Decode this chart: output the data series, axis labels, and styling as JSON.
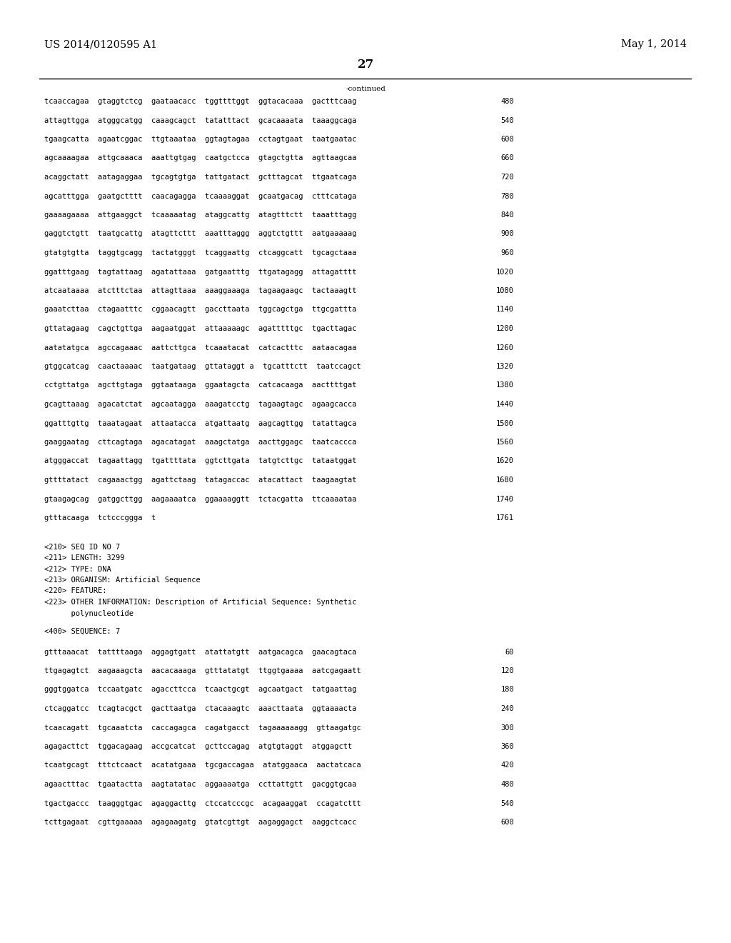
{
  "header_left": "US 2014/0120595 A1",
  "header_right": "May 1, 2014",
  "page_number": "27",
  "continued_label": "-continued",
  "background_color": "#ffffff",
  "text_color": "#000000",
  "font_size": 7.5,
  "header_font_size": 10.5,
  "page_num_font_size": 12,
  "sequence_lines_1": [
    [
      "tcaaccagaa  gtaggtctcg  gaataacacc  tggttttggt  ggtacacaaa  gactttcaag",
      "480"
    ],
    [
      "attagttgga  atgggcatgg  caaagcagct  tatatttact  gcacaaaata  taaaggcaga",
      "540"
    ],
    [
      "tgaagcatta  agaatcggac  ttgtaaataa  ggtagtagaa  cctagtgaat  taatgaatac",
      "600"
    ],
    [
      "agcaaaagaa  attgcaaaca  aaattgtgag  caatgctcca  gtagctgtta  agttaagcaa",
      "660"
    ],
    [
      "acaggctatt  aatagaggaa  tgcagtgtga  tattgatact  gctttagcat  ttgaatcaga",
      "720"
    ],
    [
      "agcatttgga  gaatgctttt  caacagagga  tcaaaaggat  gcaatgacag  ctttcataga",
      "780"
    ],
    [
      "gaaaagaaaa  attgaaggct  tcaaaaatag  ataggcattg  atagtttctt  taaatttagg",
      "840"
    ],
    [
      "gaggtctgtt  taatgcattg  atagttcttt  aaatttaggg  aggtctgttt  aatgaaaaag",
      "900"
    ],
    [
      "gtatgtgtta  taggtgcagg  tactatgggt  tcaggaattg  ctcaggcatt  tgcagctaaa",
      "960"
    ],
    [
      "ggatttgaag  tagtattaag  agatattaaa  gatgaatttg  ttgatagagg  attagatttt",
      "1020"
    ],
    [
      "atcaataaaa  atctttctaa  attagttaaa  aaaggaaaga  tagaagaagc  tactaaagtt",
      "1080"
    ],
    [
      "gaaatcttaa  ctagaatttc  cggaacagtt  gaccttaata  tggcagctga  ttgcgattta",
      "1140"
    ],
    [
      "gttatagaag  cagctgttga  aagaatggat  attaaaaagc  agatttttgc  tgacttagac",
      "1200"
    ],
    [
      "aatatatgca  agccagaaac  aattcttgca  tcaaatacat  catcactttc  aataacagaa",
      "1260"
    ],
    [
      "gtggcatcag  caactaaaac  taatgataag  gttataggt a  tgcatttctt  taatccagct",
      "1320"
    ],
    [
      "cctgttatga  agcttgtaga  ggtaataaga  ggaatagcta  catcacaaga  aacttttgat",
      "1380"
    ],
    [
      "gcagttaaag  agacatctat  agcaatagga  aaagatcctg  tagaagtagc  agaagcacca",
      "1440"
    ],
    [
      "ggatttgttg  taaatagaat  attaatacca  atgattaatg  aagcagttgg  tatattagca",
      "1500"
    ],
    [
      "gaaggaatag  cttcagtaga  agacatagat  aaagctatga  aacttggagc  taatcaccca",
      "1560"
    ],
    [
      "atgggaccat  tagaattagg  tgattttata  ggtcttgata  tatgtcttgc  tataatggat",
      "1620"
    ],
    [
      "gttttatact  cagaaactgg  agattctaag  tatagaccac  atacattact  taagaagtat",
      "1680"
    ],
    [
      "gtaagagcag  gatggcttgg  aagaaaatca  ggaaaaggtt  tctacgatta  ttcaaaataa",
      "1740"
    ],
    [
      "gtttacaaga  tctcccggga  t",
      "1761"
    ]
  ],
  "metadata_lines": [
    "<210> SEQ ID NO 7",
    "<211> LENGTH: 3299",
    "<212> TYPE: DNA",
    "<213> ORGANISM: Artificial Sequence",
    "<220> FEATURE:",
    "<223> OTHER INFORMATION: Description of Artificial Sequence: Synthetic",
    "      polynucleotide"
  ],
  "sequence_label": "<400> SEQUENCE: 7",
  "sequence_lines_2": [
    [
      "gtttaaacat  tattttaaga  aggagtgatt  atattatgtt  aatgacagca  gaacagtaca",
      "60"
    ],
    [
      "ttgagagtct  aagaaagcta  aacacaaaga  gtttatatgt  ttggtgaaaa  aatcgagaatt",
      "120"
    ],
    [
      "gggtggatca  tccaatgatc  agaccttcca  tcaactgcgt  agcaatgact  tatgaattag",
      "180"
    ],
    [
      "ctcaggatcc  tcagtacgct  gacttaatga  ctacaaagtc  aaacttaata  ggtaaaacta",
      "240"
    ],
    [
      "tcaacagatt  tgcaaatcta  caccagagca  cagatgacct  tagaaaaaagg  gttaagatgc",
      "300"
    ],
    [
      "agagacttct  tggacagaag  accgcatcat  gcttccagag  atgtgtaggt  atggagctt",
      "360"
    ],
    [
      "tcaatgcagt  tttctcaact  acatatgaaa  tgcgaccagaa  atatggaaca  aactatcaca",
      "420"
    ],
    [
      "agaactttac  tgaatactta  aagtatatac  aggaaaatga  ccttattgtt  gacggtgcaa",
      "480"
    ],
    [
      "tgactgaccc  taagggtgac  agaggacttg  ctccatcccgc  acagaaggat  ccagatcttt",
      "540"
    ],
    [
      "tcttgagaat  cgttgaaaaa  agagaagatg  gtatcgttgt  aagaggagct  aaggctcacc",
      "600"
    ]
  ]
}
